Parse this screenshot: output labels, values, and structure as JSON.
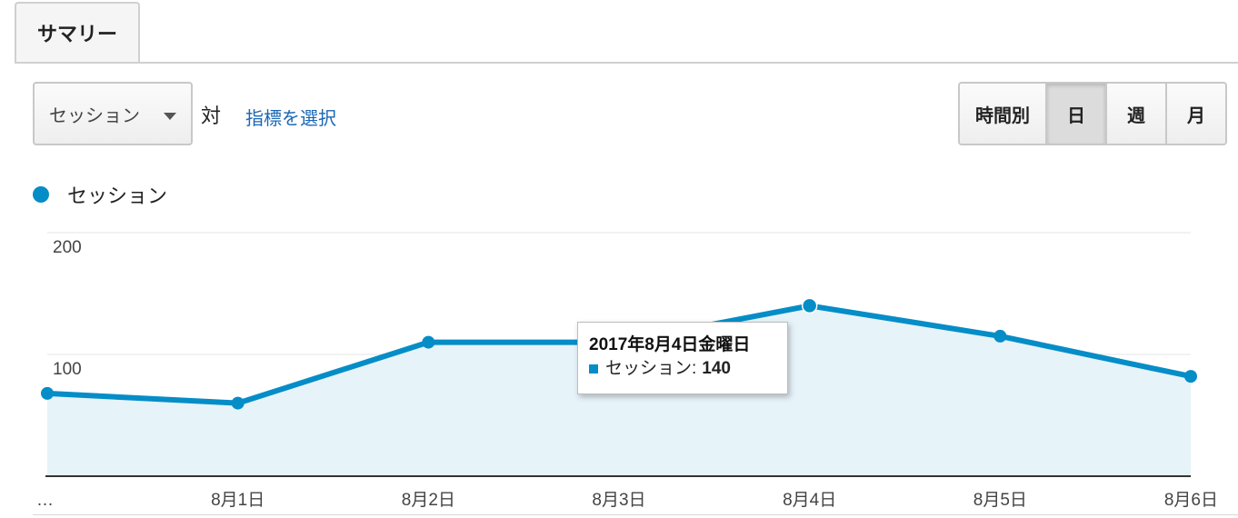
{
  "tabs": [
    {
      "label": "サマリー",
      "active": true
    }
  ],
  "metric_selector": {
    "selected": "セッション",
    "vs_label": "対",
    "select_metric_link": "指標を選択"
  },
  "granularity": {
    "options": [
      "時間別",
      "日",
      "週",
      "月"
    ],
    "selected": "日"
  },
  "legend": {
    "label": "セッション",
    "color": "#058dc7"
  },
  "chart_data": {
    "type": "area",
    "x": [
      "…",
      "8月1日",
      "8月2日",
      "8月3日",
      "8月4日",
      "8月5日",
      "8月6日"
    ],
    "y_ticks": [
      "100",
      "200"
    ],
    "ylim": [
      0,
      200
    ],
    "grid": true,
    "series": [
      {
        "name": "セッション",
        "color": "#058dc7",
        "values": [
          68,
          60,
          110,
          110,
          140,
          115,
          82
        ]
      }
    ]
  },
  "tooltip": {
    "date": "2017年8月4日金曜日",
    "metric": "セッション:",
    "value": "140"
  }
}
